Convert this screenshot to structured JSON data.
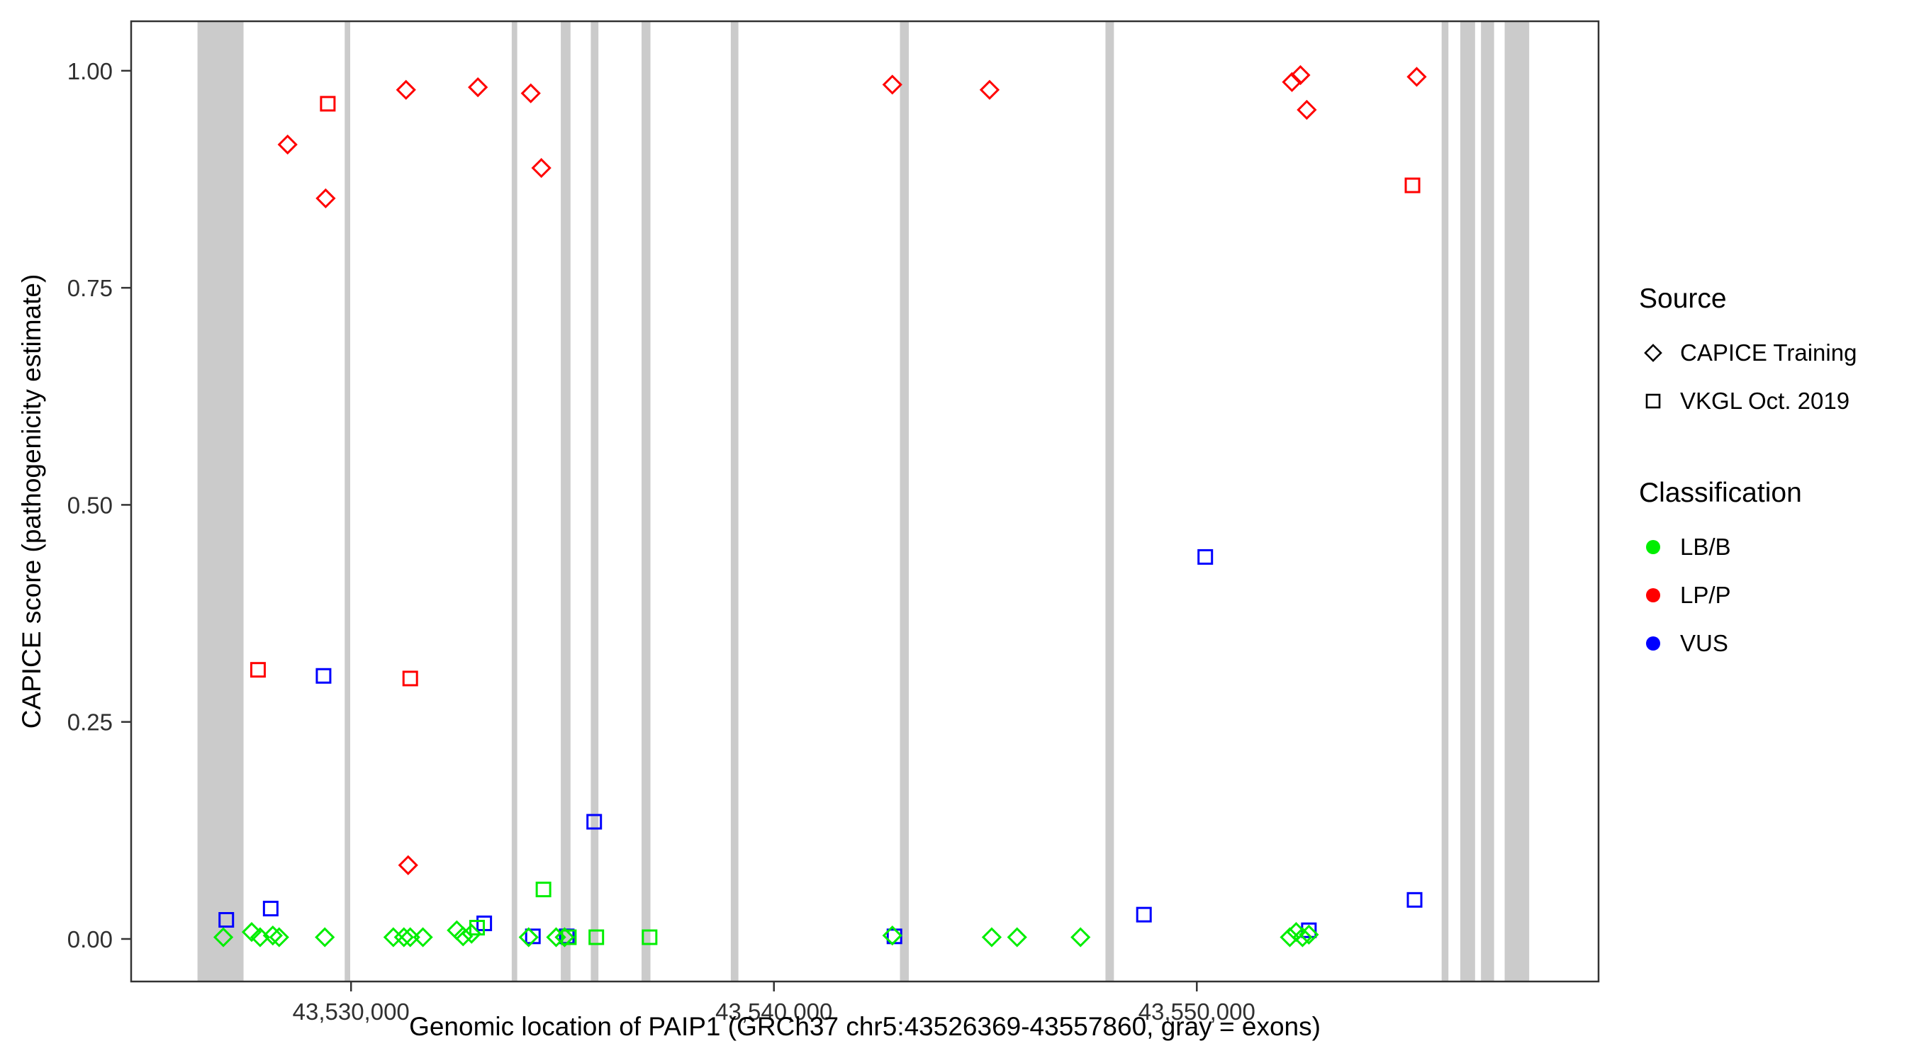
{
  "figure": {
    "x_axis_title": "Genomic location of PAIP1 (GRCh37 chr5:43526369-43557860, gray = exons)",
    "y_axis_title": "CAPICE score (pathogenicity estimate)"
  },
  "legend": {
    "source": {
      "title": "Source",
      "items": [
        {
          "label": "CAPICE Training",
          "shape": "diamond"
        },
        {
          "label": "VKGL Oct. 2019",
          "shape": "square"
        }
      ]
    },
    "classification": {
      "title": "Classification",
      "items": [
        {
          "label": "LB/B",
          "color": "#00EE00"
        },
        {
          "label": "LP/P",
          "color": "#FF0000"
        },
        {
          "label": "VUS",
          "color": "#0000FF"
        }
      ]
    }
  },
  "chart_data": {
    "type": "scatter",
    "title": "",
    "xlabel": "Genomic location of PAIP1 (GRCh37 chr5:43526369-43557860, gray = exons)",
    "ylabel": "CAPICE score (pathogenicity estimate)",
    "x_domain": [
      43524800,
      43559500
    ],
    "y_domain": [
      -0.049,
      1.057
    ],
    "x_ticks": [
      {
        "value": 43530000,
        "label": "43,530,000"
      },
      {
        "value": 43540000,
        "label": "43,540,000"
      },
      {
        "value": 43550000,
        "label": "43,550,000"
      }
    ],
    "y_ticks": [
      {
        "value": 0.0,
        "label": "0.00"
      },
      {
        "value": 0.25,
        "label": "0.25"
      },
      {
        "value": 0.5,
        "label": "0.50"
      },
      {
        "value": 0.75,
        "label": "0.75"
      },
      {
        "value": 1.0,
        "label": "1.00"
      }
    ],
    "grid": false,
    "legend_position": "right",
    "exon_color": "#CBCBCB",
    "exons": [
      [
        43526369,
        43527458
      ],
      [
        43529850,
        43529980
      ],
      [
        43533800,
        43533930
      ],
      [
        43534960,
        43535190
      ],
      [
        43535670,
        43535850
      ],
      [
        43536870,
        43537080
      ],
      [
        43538980,
        43539160
      ],
      [
        43542980,
        43543190
      ],
      [
        43547840,
        43548040
      ],
      [
        43555790,
        43555950
      ],
      [
        43556230,
        43556580
      ],
      [
        43556720,
        43557030
      ],
      [
        43557280,
        43557860
      ]
    ],
    "shape_map": {
      "CAPICE Training": "diamond",
      "VKGL Oct. 2019": "square"
    },
    "color_map": {
      "LB/B": "#00EE00",
      "LP/P": "#FF0000",
      "VUS": "#0000FF"
    },
    "points": [
      {
        "x": 43528500,
        "y": 0.915,
        "source": "CAPICE Training",
        "class": "LP/P"
      },
      {
        "x": 43529400,
        "y": 0.853,
        "source": "CAPICE Training",
        "class": "LP/P"
      },
      {
        "x": 43531300,
        "y": 0.978,
        "source": "CAPICE Training",
        "class": "LP/P"
      },
      {
        "x": 43533000,
        "y": 0.981,
        "source": "CAPICE Training",
        "class": "LP/P"
      },
      {
        "x": 43534250,
        "y": 0.974,
        "source": "CAPICE Training",
        "class": "LP/P"
      },
      {
        "x": 43534500,
        "y": 0.888,
        "source": "CAPICE Training",
        "class": "LP/P"
      },
      {
        "x": 43531350,
        "y": 0.085,
        "source": "CAPICE Training",
        "class": "LP/P"
      },
      {
        "x": 43542800,
        "y": 0.984,
        "source": "CAPICE Training",
        "class": "LP/P"
      },
      {
        "x": 43545100,
        "y": 0.978,
        "source": "CAPICE Training",
        "class": "LP/P"
      },
      {
        "x": 43552250,
        "y": 0.987,
        "source": "CAPICE Training",
        "class": "LP/P"
      },
      {
        "x": 43552450,
        "y": 0.995,
        "source": "CAPICE Training",
        "class": "LP/P"
      },
      {
        "x": 43552600,
        "y": 0.955,
        "source": "CAPICE Training",
        "class": "LP/P"
      },
      {
        "x": 43555200,
        "y": 0.993,
        "source": "CAPICE Training",
        "class": "LP/P"
      },
      {
        "x": 43529450,
        "y": 0.962,
        "source": "VKGL Oct. 2019",
        "class": "LP/P"
      },
      {
        "x": 43527800,
        "y": 0.31,
        "source": "VKGL Oct. 2019",
        "class": "LP/P"
      },
      {
        "x": 43531400,
        "y": 0.3,
        "source": "VKGL Oct. 2019",
        "class": "LP/P"
      },
      {
        "x": 43555100,
        "y": 0.868,
        "source": "VKGL Oct. 2019",
        "class": "LP/P"
      },
      {
        "x": 43529350,
        "y": 0.303,
        "source": "VKGL Oct. 2019",
        "class": "VUS"
      },
      {
        "x": 43550200,
        "y": 0.44,
        "source": "VKGL Oct. 2019",
        "class": "VUS"
      },
      {
        "x": 43535750,
        "y": 0.135,
        "source": "VKGL Oct. 2019",
        "class": "VUS"
      },
      {
        "x": 43528100,
        "y": 0.035,
        "source": "VKGL Oct. 2019",
        "class": "VUS"
      },
      {
        "x": 43527050,
        "y": 0.022,
        "source": "VKGL Oct. 2019",
        "class": "VUS"
      },
      {
        "x": 43548750,
        "y": 0.028,
        "source": "VKGL Oct. 2019",
        "class": "VUS"
      },
      {
        "x": 43555150,
        "y": 0.045,
        "source": "VKGL Oct. 2019",
        "class": "VUS"
      },
      {
        "x": 43533150,
        "y": 0.018,
        "source": "VKGL Oct. 2019",
        "class": "VUS"
      },
      {
        "x": 43534300,
        "y": 0.003,
        "source": "VKGL Oct. 2019",
        "class": "VUS"
      },
      {
        "x": 43535100,
        "y": 0.003,
        "source": "VKGL Oct. 2019",
        "class": "VUS"
      },
      {
        "x": 43542850,
        "y": 0.003,
        "source": "VKGL Oct. 2019",
        "class": "VUS"
      },
      {
        "x": 43552650,
        "y": 0.01,
        "source": "VKGL Oct. 2019",
        "class": "VUS"
      },
      {
        "x": 43534550,
        "y": 0.057,
        "source": "VKGL Oct. 2019",
        "class": "LB/B"
      },
      {
        "x": 43535800,
        "y": 0.002,
        "source": "VKGL Oct. 2019",
        "class": "LB/B"
      },
      {
        "x": 43537060,
        "y": 0.002,
        "source": "VKGL Oct. 2019",
        "class": "LB/B"
      },
      {
        "x": 43535150,
        "y": 0.002,
        "source": "VKGL Oct. 2019",
        "class": "LB/B"
      },
      {
        "x": 43532980,
        "y": 0.013,
        "source": "VKGL Oct. 2019",
        "class": "LB/B"
      },
      {
        "x": 43526980,
        "y": 0.002,
        "source": "CAPICE Training",
        "class": "LB/B"
      },
      {
        "x": 43527650,
        "y": 0.008,
        "source": "CAPICE Training",
        "class": "LB/B"
      },
      {
        "x": 43527850,
        "y": 0.002,
        "source": "CAPICE Training",
        "class": "LB/B"
      },
      {
        "x": 43528150,
        "y": 0.004,
        "source": "CAPICE Training",
        "class": "LB/B"
      },
      {
        "x": 43528300,
        "y": 0.002,
        "source": "CAPICE Training",
        "class": "LB/B"
      },
      {
        "x": 43529380,
        "y": 0.002,
        "source": "CAPICE Training",
        "class": "LB/B"
      },
      {
        "x": 43531000,
        "y": 0.002,
        "source": "CAPICE Training",
        "class": "LB/B"
      },
      {
        "x": 43531250,
        "y": 0.002,
        "source": "CAPICE Training",
        "class": "LB/B"
      },
      {
        "x": 43531400,
        "y": 0.002,
        "source": "CAPICE Training",
        "class": "LB/B"
      },
      {
        "x": 43531700,
        "y": 0.002,
        "source": "CAPICE Training",
        "class": "LB/B"
      },
      {
        "x": 43532500,
        "y": 0.01,
        "source": "CAPICE Training",
        "class": "LB/B"
      },
      {
        "x": 43532650,
        "y": 0.003,
        "source": "CAPICE Training",
        "class": "LB/B"
      },
      {
        "x": 43532850,
        "y": 0.006,
        "source": "CAPICE Training",
        "class": "LB/B"
      },
      {
        "x": 43534200,
        "y": 0.002,
        "source": "CAPICE Training",
        "class": "LB/B"
      },
      {
        "x": 43534850,
        "y": 0.002,
        "source": "CAPICE Training",
        "class": "LB/B"
      },
      {
        "x": 43535050,
        "y": 0.002,
        "source": "CAPICE Training",
        "class": "LB/B"
      },
      {
        "x": 43542800,
        "y": 0.004,
        "source": "CAPICE Training",
        "class": "LB/B"
      },
      {
        "x": 43545150,
        "y": 0.002,
        "source": "CAPICE Training",
        "class": "LB/B"
      },
      {
        "x": 43545750,
        "y": 0.002,
        "source": "CAPICE Training",
        "class": "LB/B"
      },
      {
        "x": 43547250,
        "y": 0.002,
        "source": "CAPICE Training",
        "class": "LB/B"
      },
      {
        "x": 43552200,
        "y": 0.002,
        "source": "CAPICE Training",
        "class": "LB/B"
      },
      {
        "x": 43552350,
        "y": 0.008,
        "source": "CAPICE Training",
        "class": "LB/B"
      },
      {
        "x": 43552500,
        "y": 0.002,
        "source": "CAPICE Training",
        "class": "LB/B"
      },
      {
        "x": 43552650,
        "y": 0.005,
        "source": "CAPICE Training",
        "class": "LB/B"
      }
    ]
  }
}
